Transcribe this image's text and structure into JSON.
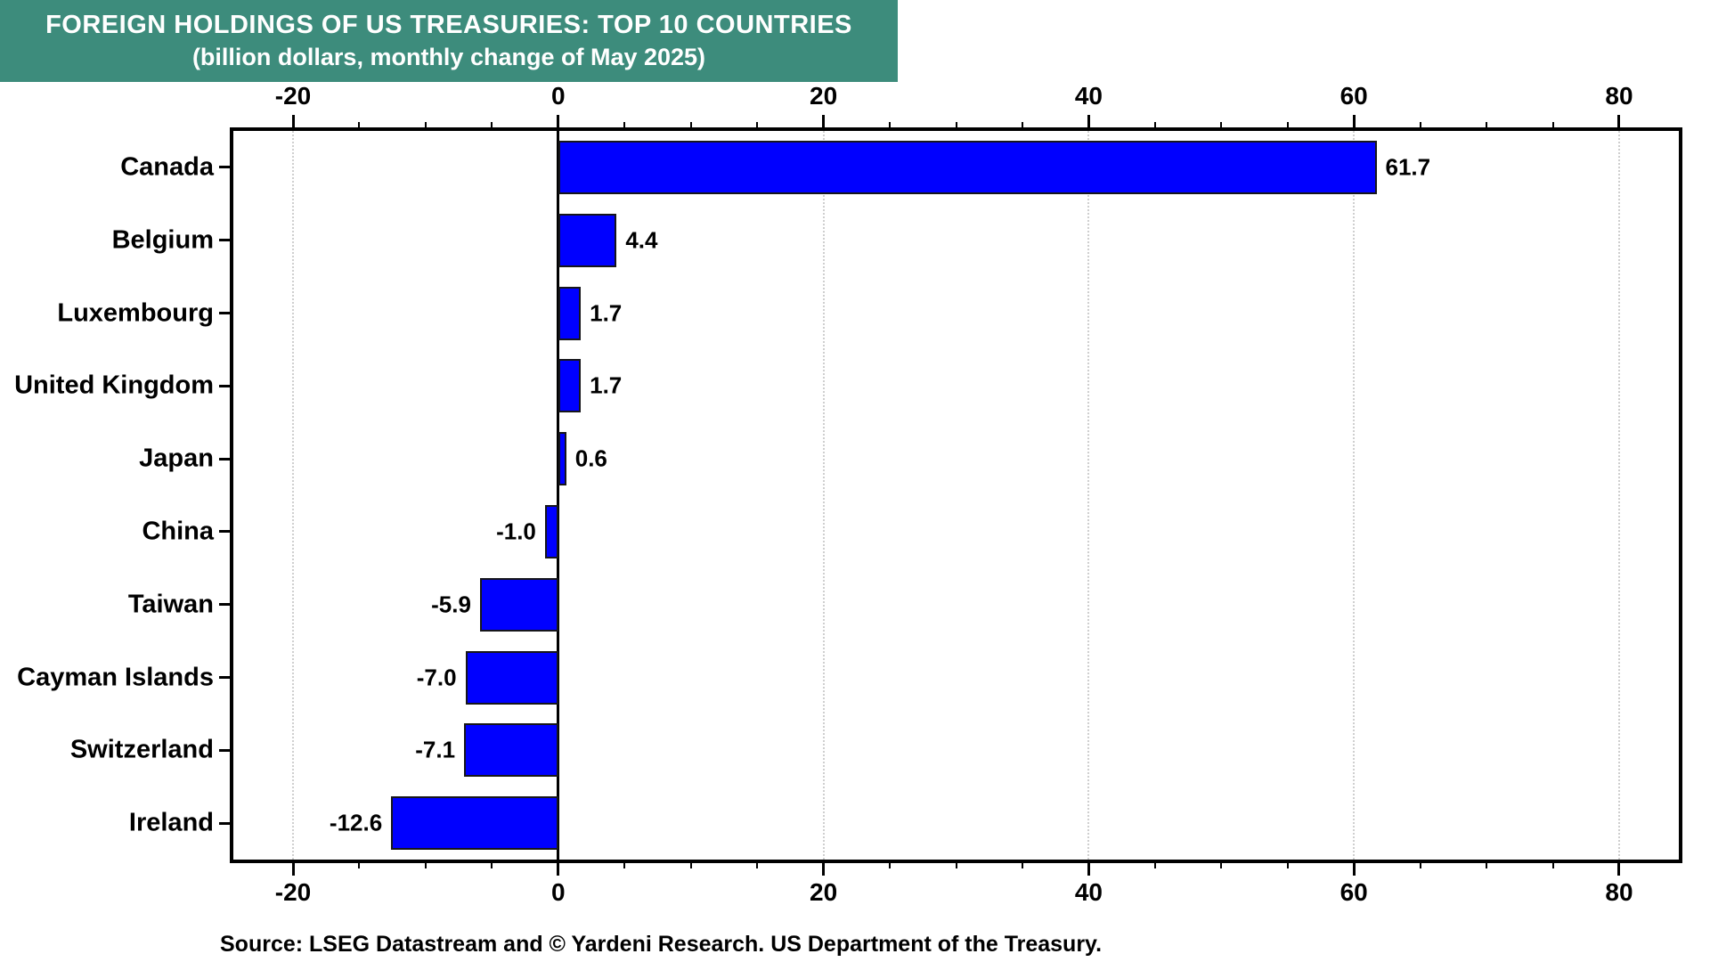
{
  "title_bar": {
    "line1": "FOREIGN HOLDINGS OF US TREASURIES: TOP 10 COUNTRIES",
    "line2": "(billion dollars, monthly change of May 2025)",
    "bg_color": "#3D8C7C",
    "text_color": "#FFFFFF"
  },
  "source_note": "Source: LSEG Datastream and © Yardeni Research. US Department of the Treasury.",
  "chart_data": {
    "type": "bar",
    "orientation": "horizontal",
    "title": "FOREIGN HOLDINGS OF US TREASURIES: TOP 10 COUNTRIES",
    "subtitle": "(billion dollars, monthly change of May 2025)",
    "categories": [
      "Canada",
      "Belgium",
      "Luxembourg",
      "United Kingdom",
      "Japan",
      "China",
      "Taiwan",
      "Cayman Islands",
      "Switzerland",
      "Ireland"
    ],
    "values": [
      61.7,
      4.4,
      1.7,
      1.7,
      0.6,
      -1.0,
      -5.9,
      -7.0,
      -7.1,
      -12.6
    ],
    "value_labels": [
      "61.7",
      "4.4",
      "1.7",
      "1.7",
      "0.6",
      "-1.0",
      "-5.9",
      "-7.0",
      "-7.1",
      "-12.6"
    ],
    "xlabel": "",
    "ylabel": "",
    "xlim": [
      -24.5,
      84.5
    ],
    "x_major_ticks": [
      -20,
      0,
      20,
      40,
      60,
      80
    ],
    "x_major_tick_labels": [
      "-20",
      "0",
      "20",
      "40",
      "60",
      "80"
    ],
    "x_minor_tick_step": 5,
    "grid": "vertical dotted at major ticks, solid black zero line",
    "legend": "none",
    "bar_color": "#0000FF",
    "bar_border_color": "#16161A",
    "gridline_color": "#CFCFCF"
  }
}
